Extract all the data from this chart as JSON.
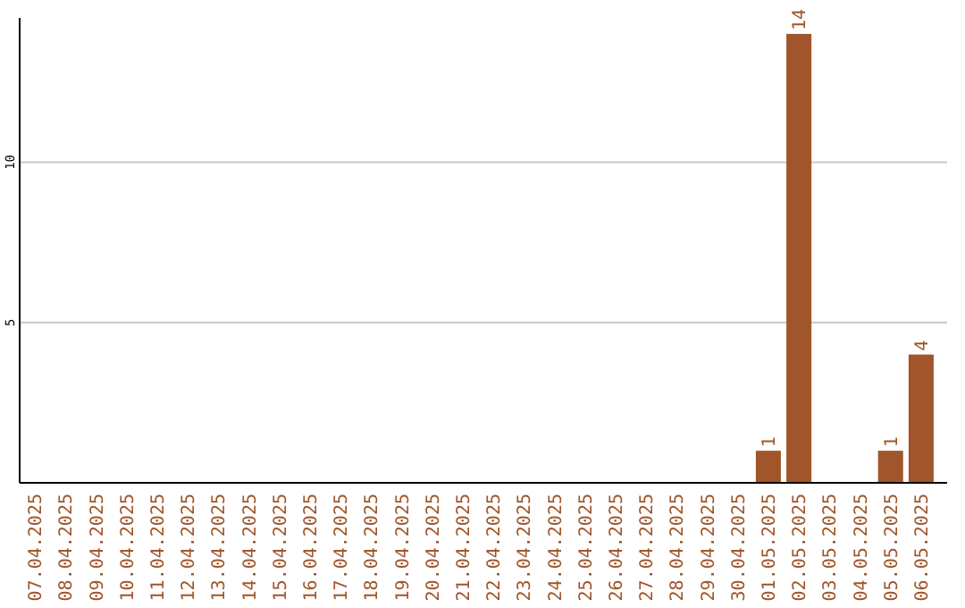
{
  "chart_data": {
    "type": "bar",
    "categories": [
      "07.04.2025",
      "08.04.2025",
      "09.04.2025",
      "10.04.2025",
      "11.04.2025",
      "12.04.2025",
      "13.04.2025",
      "14.04.2025",
      "15.04.2025",
      "16.04.2025",
      "17.04.2025",
      "18.04.2025",
      "19.04.2025",
      "20.04.2025",
      "21.04.2025",
      "22.04.2025",
      "23.04.2025",
      "24.04.2025",
      "25.04.2025",
      "26.04.2025",
      "27.04.2025",
      "28.04.2025",
      "29.04.2025",
      "30.04.2025",
      "01.05.2025",
      "02.05.2025",
      "03.05.2025",
      "04.05.2025",
      "05.05.2025",
      "06.05.2025"
    ],
    "values": [
      0,
      0,
      0,
      0,
      0,
      0,
      0,
      0,
      0,
      0,
      0,
      0,
      0,
      0,
      0,
      0,
      0,
      0,
      0,
      0,
      0,
      0,
      0,
      0,
      1,
      14,
      0,
      0,
      1,
      4
    ],
    "value_labels": [
      null,
      null,
      null,
      null,
      null,
      null,
      null,
      null,
      null,
      null,
      null,
      null,
      null,
      null,
      null,
      null,
      null,
      null,
      null,
      null,
      null,
      null,
      null,
      null,
      "1",
      "14",
      null,
      null,
      "1",
      "4"
    ],
    "color": "#a0562a",
    "ylim": [
      0,
      14.5
    ],
    "yticks": [
      5,
      10
    ],
    "grid": "y"
  }
}
